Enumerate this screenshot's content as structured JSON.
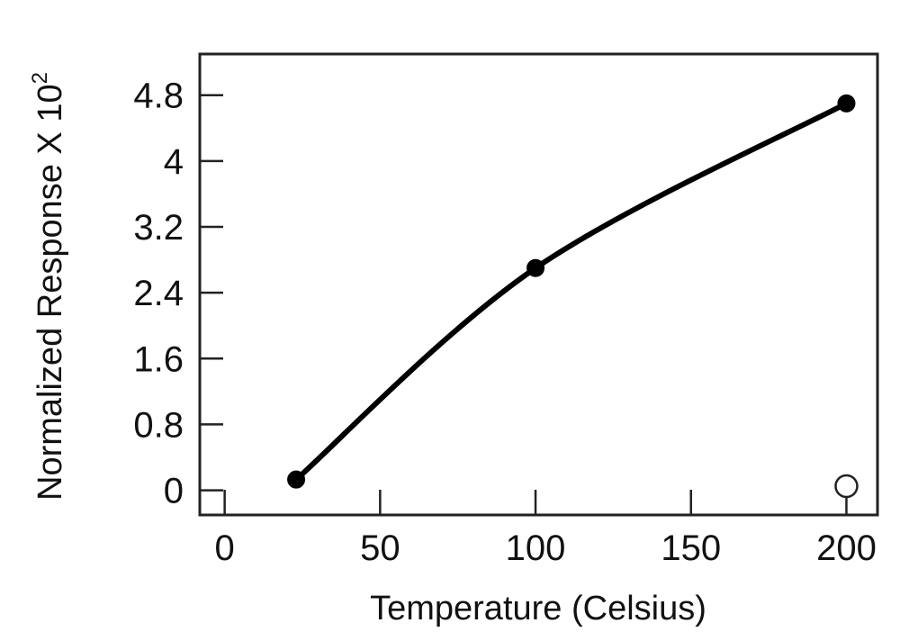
{
  "chart_data": {
    "type": "line",
    "title": "",
    "xlabel": "Temperature (Celsius)",
    "ylabel": "Normalized Response X 10",
    "ylabel_exponent": "2",
    "xlim": [
      -8,
      210
    ],
    "ylim": [
      -0.3,
      5.3
    ],
    "x_ticks": [
      0,
      50,
      100,
      150,
      200
    ],
    "x_tick_labels": [
      "0",
      "50",
      "100",
      "150",
      "200"
    ],
    "y_ticks": [
      0,
      0.8,
      1.6,
      2.4,
      3.2,
      4,
      4.8
    ],
    "y_tick_labels": [
      "0",
      "0.8",
      "1.6",
      "2.4",
      "3.2",
      "4",
      "4.8"
    ],
    "grid": false,
    "colors": {
      "line": "#000000",
      "marker_filled": "#000000",
      "marker_open_fill": "#ffffff"
    },
    "series": [
      {
        "x": [
          23,
          100,
          200
        ],
        "y": [
          0.13,
          2.7,
          4.7
        ],
        "marker": "filled-circle",
        "line": "smooth"
      }
    ],
    "extra_points": [
      {
        "x": 200,
        "y": 0.05,
        "marker": "open-circle"
      }
    ]
  }
}
